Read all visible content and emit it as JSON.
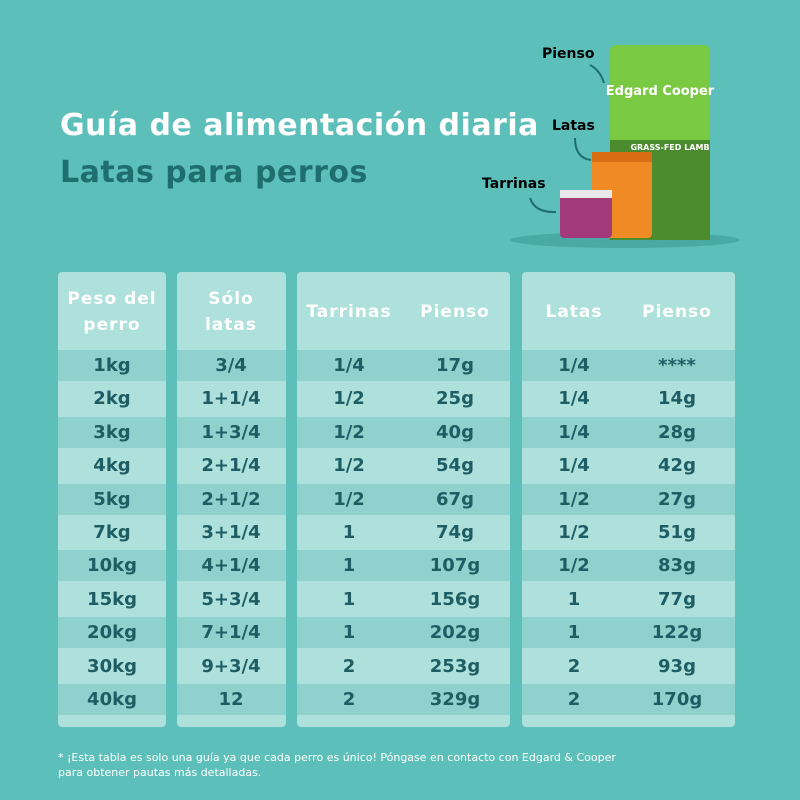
{
  "header": {
    "title": "Guía de alimentación diaria",
    "subtitle": "Latas para perros"
  },
  "product": {
    "labels": [
      "Pienso",
      "Latas",
      "Tarrinas"
    ],
    "brand": "Edgard Cooper",
    "flavor": "GRASS-FED LAMB"
  },
  "table": {
    "headers": [
      "Peso del perro",
      "Sólo latas",
      "Tarrinas",
      "Pienso",
      "Latas",
      "Pienso"
    ],
    "rows": [
      [
        "1kg",
        "3/4",
        "1/4",
        "17g",
        "1/4",
        "****"
      ],
      [
        "2kg",
        "1+1/4",
        "1/2",
        "25g",
        "1/4",
        "14g"
      ],
      [
        "3kg",
        "1+3/4",
        "1/2",
        "40g",
        "1/4",
        "28g"
      ],
      [
        "4kg",
        "2+1/4",
        "1/2",
        "54g",
        "1/4",
        "42g"
      ],
      [
        "5kg",
        "2+1/2",
        "1/2",
        "67g",
        "1/2",
        "27g"
      ],
      [
        "7kg",
        "3+1/4",
        "1",
        "74g",
        "1/2",
        "51g"
      ],
      [
        "10kg",
        "4+1/4",
        "1",
        "107g",
        "1/2",
        "83g"
      ],
      [
        "15kg",
        "5+3/4",
        "1",
        "156g",
        "1",
        "77g"
      ],
      [
        "20kg",
        "7+1/4",
        "1",
        "202g",
        "1",
        "122g"
      ],
      [
        "30kg",
        "9+3/4",
        "2",
        "253g",
        "2",
        "93g"
      ],
      [
        "40kg",
        "12",
        "2",
        "329g",
        "2",
        "170g"
      ]
    ]
  },
  "footnote": "* ¡Esta tabla es solo una guía ya que cada perro es único! Póngase en contacto con Edgard & Cooper para obtener pautas más detalladas."
}
